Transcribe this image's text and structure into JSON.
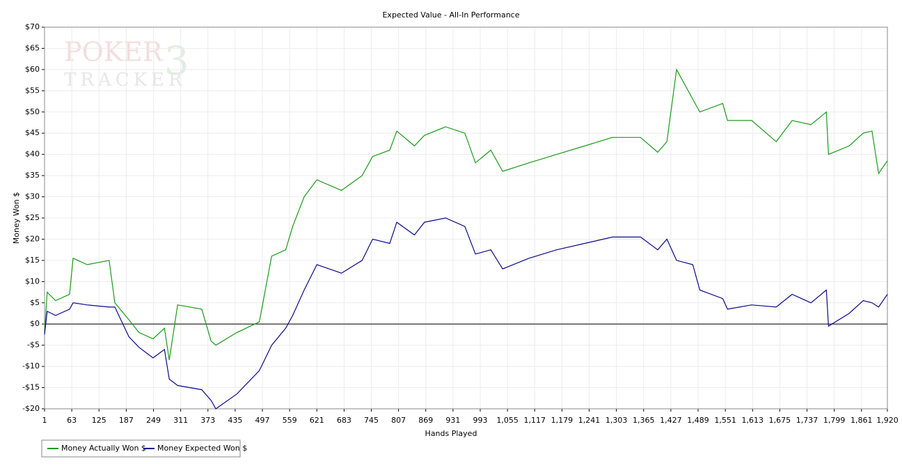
{
  "chart_data": {
    "type": "line",
    "title": "Expected Value - All-In Performance",
    "x_label": "Hands Played",
    "y_label": "Money Won $",
    "watermark": [
      "POKER",
      "TRACKER",
      "3"
    ],
    "x": [
      1,
      7,
      26,
      58,
      66,
      98,
      148,
      161,
      193,
      216,
      248,
      274,
      285,
      304,
      359,
      380,
      391,
      439,
      490,
      518,
      550,
      566,
      592,
      621,
      677,
      724,
      748,
      787,
      803,
      843,
      866,
      914,
      958,
      982,
      1017,
      1044,
      1104,
      1167,
      1231,
      1294,
      1358,
      1397,
      1418,
      1440,
      1477,
      1493,
      1545,
      1556,
      1611,
      1667,
      1703,
      1746,
      1781,
      1786,
      1833,
      1865,
      1885,
      1900,
      1920
    ],
    "series": [
      {
        "name": "Money Actually Won $",
        "color": "#1a9a1a",
        "values": [
          -2,
          7.5,
          5.5,
          7,
          15.5,
          14,
          15,
          5,
          1,
          -2,
          -3.5,
          -1,
          -8.5,
          4.5,
          3.5,
          -4,
          -5,
          -2,
          0.5,
          16,
          17.5,
          23,
          30,
          34,
          31.5,
          35,
          39.5,
          41,
          45.5,
          42,
          44.5,
          46.5,
          45,
          38,
          41,
          36,
          38,
          40,
          42,
          44,
          44,
          40.5,
          43,
          60,
          53,
          50,
          52,
          48,
          48,
          43,
          48,
          47,
          50,
          40,
          42,
          45,
          45.5,
          35.5,
          38.5
        ]
      },
      {
        "name": "Money Expected Won $",
        "color": "#0a0a8a",
        "values": [
          -2.5,
          3,
          2,
          3.5,
          5,
          4.5,
          4,
          4,
          -3,
          -5.5,
          -8,
          -6,
          -13,
          -14.5,
          -15.5,
          -18,
          -20,
          -16.5,
          -11,
          -5,
          -1,
          2,
          8,
          14,
          12,
          15,
          20,
          19,
          24,
          21,
          24,
          25,
          23,
          16.5,
          17.5,
          13,
          15.5,
          17.5,
          19,
          20.5,
          20.5,
          17.5,
          20,
          15,
          14,
          8,
          6,
          3.5,
          4.5,
          4,
          7,
          5,
          8,
          -0.5,
          2.5,
          5.5,
          5,
          4,
          7
        ]
      }
    ],
    "xlim": [
      1,
      1920
    ],
    "xticks": [
      1,
      63,
      125,
      187,
      249,
      311,
      373,
      435,
      497,
      559,
      621,
      683,
      745,
      807,
      869,
      931,
      993,
      {
        "value": 1055,
        "label": "1,055"
      },
      {
        "value": 1117,
        "label": "1,117"
      },
      {
        "value": 1179,
        "label": "1,179"
      },
      {
        "value": 1241,
        "label": "1,241"
      },
      {
        "value": 1303,
        "label": "1,303"
      },
      {
        "value": 1365,
        "label": "1,365"
      },
      {
        "value": 1427,
        "label": "1,427"
      },
      {
        "value": 1489,
        "label": "1,489"
      },
      {
        "value": 1551,
        "label": "1,551"
      },
      {
        "value": 1613,
        "label": "1,613"
      },
      {
        "value": 1675,
        "label": "1,675"
      },
      {
        "value": 1737,
        "label": "1,737"
      },
      {
        "value": 1799,
        "label": "1,799"
      },
      {
        "value": 1861,
        "label": "1,861"
      },
      {
        "value": 1920,
        "label": "1,920"
      }
    ],
    "ylim": [
      -20,
      70
    ],
    "yticks": [
      {
        "value": -20,
        "label": "-$20"
      },
      {
        "value": -15,
        "label": "-$15"
      },
      {
        "value": -10,
        "label": "-$10"
      },
      {
        "value": -5,
        "label": "-$5"
      },
      {
        "value": 0,
        "label": "$0"
      },
      {
        "value": 5,
        "label": "$5"
      },
      {
        "value": 10,
        "label": "$10"
      },
      {
        "value": 15,
        "label": "$15"
      },
      {
        "value": 20,
        "label": "$20"
      },
      {
        "value": 25,
        "label": "$25"
      },
      {
        "value": 30,
        "label": "$30"
      },
      {
        "value": 35,
        "label": "$35"
      },
      {
        "value": 40,
        "label": "$40"
      },
      {
        "value": 45,
        "label": "$45"
      },
      {
        "value": 50,
        "label": "$50"
      },
      {
        "value": 55,
        "label": "$55"
      },
      {
        "value": 60,
        "label": "$60"
      },
      {
        "value": 65,
        "label": "$65"
      },
      {
        "value": 70,
        "label": "$70"
      }
    ],
    "grid": true
  }
}
